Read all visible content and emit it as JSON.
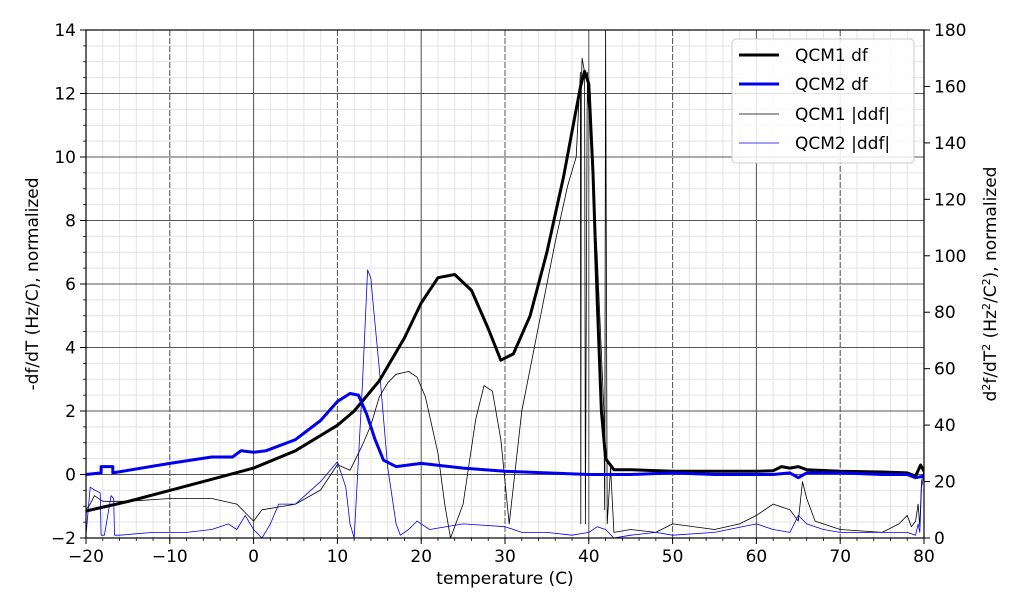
{
  "chart_data": {
    "type": "line",
    "title": "",
    "xlabel": "temperature (C)",
    "ylabel_left": "-df/dT (Hz/C), normalized",
    "ylabel_right": "d2f/dT2 (Hz2/C2), normalized",
    "xlim": [
      -20,
      80
    ],
    "ylim_left": [
      -2,
      14
    ],
    "ylim_right": [
      0,
      180
    ],
    "x_ticks": [
      -20,
      -10,
      0,
      10,
      20,
      30,
      40,
      50,
      60,
      70,
      80
    ],
    "x_tick_labels": [
      "−20",
      "−10",
      "0",
      "10",
      "20",
      "30",
      "40",
      "50",
      "60",
      "70",
      "80"
    ],
    "y_ticks_left": [
      -2,
      0,
      2,
      4,
      6,
      8,
      10,
      12,
      14
    ],
    "y_tick_labels_left": [
      "−2",
      "0",
      "2",
      "4",
      "6",
      "8",
      "10",
      "12",
      "14"
    ],
    "y_ticks_right": [
      0,
      20,
      40,
      60,
      80,
      100,
      120,
      140,
      160,
      180
    ],
    "y_tick_labels_right": [
      "0",
      "20",
      "40",
      "60",
      "80",
      "100",
      "120",
      "140",
      "160",
      "180"
    ],
    "grid": true,
    "minor_grid": true,
    "legend_position": "upper right",
    "legend": [
      "QCM1 df",
      "QCM2 df",
      "QCM1 |ddf|",
      "QCM2 |ddf|"
    ],
    "series": [
      {
        "name": "QCM1 df",
        "axis": "left",
        "color": "#000000",
        "width": 3,
        "x": [
          -20,
          -15,
          -10,
          -5,
          0,
          5,
          10,
          12,
          15,
          18,
          20,
          22,
          24,
          26,
          28,
          29.5,
          31,
          33,
          35,
          37,
          38,
          39,
          39.5,
          40,
          40.5,
          41,
          41.5,
          42,
          43,
          45,
          50,
          55,
          60,
          62,
          63,
          64,
          65,
          66,
          70,
          75,
          78,
          79,
          79.6,
          80
        ],
        "values": [
          -1.15,
          -0.85,
          -0.5,
          -0.15,
          0.2,
          0.75,
          1.55,
          2.0,
          2.95,
          4.3,
          5.4,
          6.2,
          6.3,
          5.8,
          4.6,
          3.6,
          3.8,
          5.0,
          7.0,
          9.4,
          10.8,
          12.2,
          12.7,
          12.3,
          9.5,
          5.5,
          2.0,
          0.5,
          0.15,
          0.15,
          0.1,
          0.1,
          0.1,
          0.12,
          0.25,
          0.2,
          0.25,
          0.15,
          0.1,
          0.08,
          0.05,
          -0.05,
          0.3,
          0.1
        ]
      },
      {
        "name": "QCM2 df",
        "axis": "left",
        "color": "#0000ee",
        "width": 3,
        "x": [
          -20,
          -18.2,
          -18.2,
          -16.8,
          -16.8,
          -10,
          -5,
          -2.5,
          -1.5,
          0,
          1.5,
          5,
          8,
          10,
          11.5,
          12.5,
          13.5,
          14.5,
          15.5,
          17,
          20,
          25,
          30,
          35,
          40,
          45,
          50,
          55,
          60,
          62,
          64,
          65,
          66,
          70,
          75,
          78,
          79,
          80
        ],
        "values": [
          0,
          0.05,
          0.25,
          0.25,
          0.05,
          0.35,
          0.55,
          0.55,
          0.75,
          0.7,
          0.75,
          1.1,
          1.7,
          2.3,
          2.55,
          2.5,
          1.9,
          1.1,
          0.45,
          0.25,
          0.35,
          0.2,
          0.1,
          0.05,
          0.0,
          0.0,
          0.05,
          0.0,
          0.0,
          0.0,
          0.05,
          -0.1,
          0.05,
          0.05,
          0.0,
          0.0,
          -0.1,
          -0.05
        ]
      },
      {
        "name": "QCM1 |ddf|",
        "axis": "right",
        "color": "#000000",
        "width": 0.8,
        "x": [
          -20,
          -19.5,
          -19,
          -18,
          -15,
          -10,
          -5,
          -2,
          0,
          1,
          3,
          5,
          8,
          10,
          11.5,
          13,
          14,
          15,
          16,
          17,
          18.5,
          19.5,
          20.5,
          22,
          22.8,
          23.5,
          25,
          26.5,
          27.5,
          28.5,
          29.5,
          30.5,
          32,
          34,
          36,
          37.5,
          38.5,
          39.0,
          39.05,
          39.1,
          39.2,
          39.5,
          39.6,
          39.8,
          39.85,
          39.9,
          40.2,
          40.6,
          41,
          41.8,
          41.9,
          42.0,
          42.2,
          42.6,
          43,
          45,
          48,
          50,
          55,
          58,
          60,
          62,
          64,
          65,
          65.5,
          66,
          67,
          70,
          75,
          77,
          78,
          78.5,
          79,
          79.3,
          79.5,
          79.7,
          80
        ],
        "values": [
          10,
          12,
          15,
          13,
          13,
          14,
          14,
          12,
          6,
          10,
          11,
          12,
          17,
          26,
          24,
          33,
          40,
          50,
          55,
          58,
          59,
          57,
          50,
          30,
          12,
          0,
          12,
          42,
          54,
          52,
          35,
          5,
          45,
          75,
          105,
          125,
          135,
          165,
          5,
          160,
          170,
          165,
          5,
          150,
          165,
          155,
          145,
          120,
          100,
          45,
          10,
          180,
          5,
          25,
          2,
          3,
          2,
          5,
          3,
          5,
          8,
          12,
          10,
          6,
          20,
          14,
          6,
          3,
          2,
          5,
          8,
          4,
          6,
          12,
          4,
          20,
          24
        ]
      },
      {
        "name": "QCM2 |ddf|",
        "axis": "right",
        "color": "#0000ee",
        "width": 0.8,
        "x": [
          -20,
          -19.5,
          -19,
          -18.3,
          -18.2,
          -17.8,
          -17,
          -16.7,
          -16.6,
          -16,
          -12,
          -8,
          -5,
          -3,
          -2,
          -1,
          0,
          1,
          2,
          3,
          5,
          8,
          10,
          11,
          11.5,
          12,
          13,
          13.6,
          14,
          14.2,
          15,
          16,
          17,
          17.5,
          18.5,
          19.5,
          20,
          21,
          25,
          30,
          32,
          35,
          38,
          40,
          41,
          42,
          43,
          45,
          48,
          50,
          55,
          60,
          62,
          64,
          65,
          66,
          68,
          70,
          75,
          78,
          79,
          79.3,
          79.5,
          79.7,
          80
        ],
        "values": [
          1,
          18,
          17,
          16,
          1,
          1,
          15,
          14,
          1,
          1,
          2,
          2,
          3,
          5,
          3,
          8,
          3,
          0,
          5,
          12,
          12,
          20,
          27,
          18,
          5,
          0,
          55,
          95,
          92,
          85,
          60,
          25,
          5,
          1,
          3,
          6,
          5,
          3,
          5,
          4,
          2,
          2,
          1,
          2,
          4,
          3,
          0,
          1,
          2,
          1,
          2,
          5,
          3,
          2,
          8,
          5,
          3,
          2,
          2,
          2,
          1,
          5,
          2,
          18,
          22
        ]
      }
    ]
  }
}
